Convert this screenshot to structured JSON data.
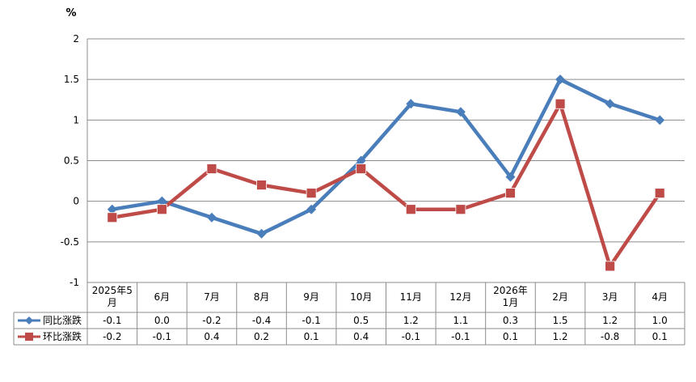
{
  "chart_data": {
    "type": "line",
    "unit_label": "%",
    "ylim": [
      -1,
      2
    ],
    "yticks": [
      "2",
      "1.5",
      "1",
      "0.5",
      "0",
      "-0.5",
      "-1"
    ],
    "ytick_values": [
      2,
      1.5,
      1,
      0.5,
      0,
      -0.5,
      -1
    ],
    "categories": [
      [
        "2025年5",
        "月"
      ],
      [
        "6月"
      ],
      [
        "7月"
      ],
      [
        "8月"
      ],
      [
        "9月"
      ],
      [
        "10月"
      ],
      [
        "11月"
      ],
      [
        "12月"
      ],
      [
        "2026年",
        "1月"
      ],
      [
        "2月"
      ],
      [
        "3月"
      ],
      [
        "4月"
      ]
    ],
    "grid": true,
    "legend": "in data table (left column)",
    "series": [
      {
        "name": "同比涨跌",
        "color": "#4a7ebb",
        "marker": "diamond",
        "values": [
          -0.1,
          0.0,
          -0.2,
          -0.4,
          -0.1,
          0.5,
          1.2,
          1.1,
          0.3,
          1.5,
          1.2,
          1.0
        ],
        "labels": [
          "-0.1",
          "0.0",
          "-0.2",
          "-0.4",
          "-0.1",
          "0.5",
          "1.2",
          "1.1",
          "0.3",
          "1.5",
          "1.2",
          "1.0"
        ]
      },
      {
        "name": "环比涨跌",
        "color": "#be4b48",
        "marker": "square",
        "values": [
          -0.2,
          -0.1,
          0.4,
          0.2,
          0.1,
          0.4,
          -0.1,
          -0.1,
          0.1,
          1.2,
          -0.8,
          0.1
        ],
        "labels": [
          "-0.2",
          "-0.1",
          "0.4",
          "0.2",
          "0.1",
          "0.4",
          "-0.1",
          "-0.1",
          "0.1",
          "1.2",
          "-0.8",
          "0.1"
        ]
      }
    ]
  }
}
